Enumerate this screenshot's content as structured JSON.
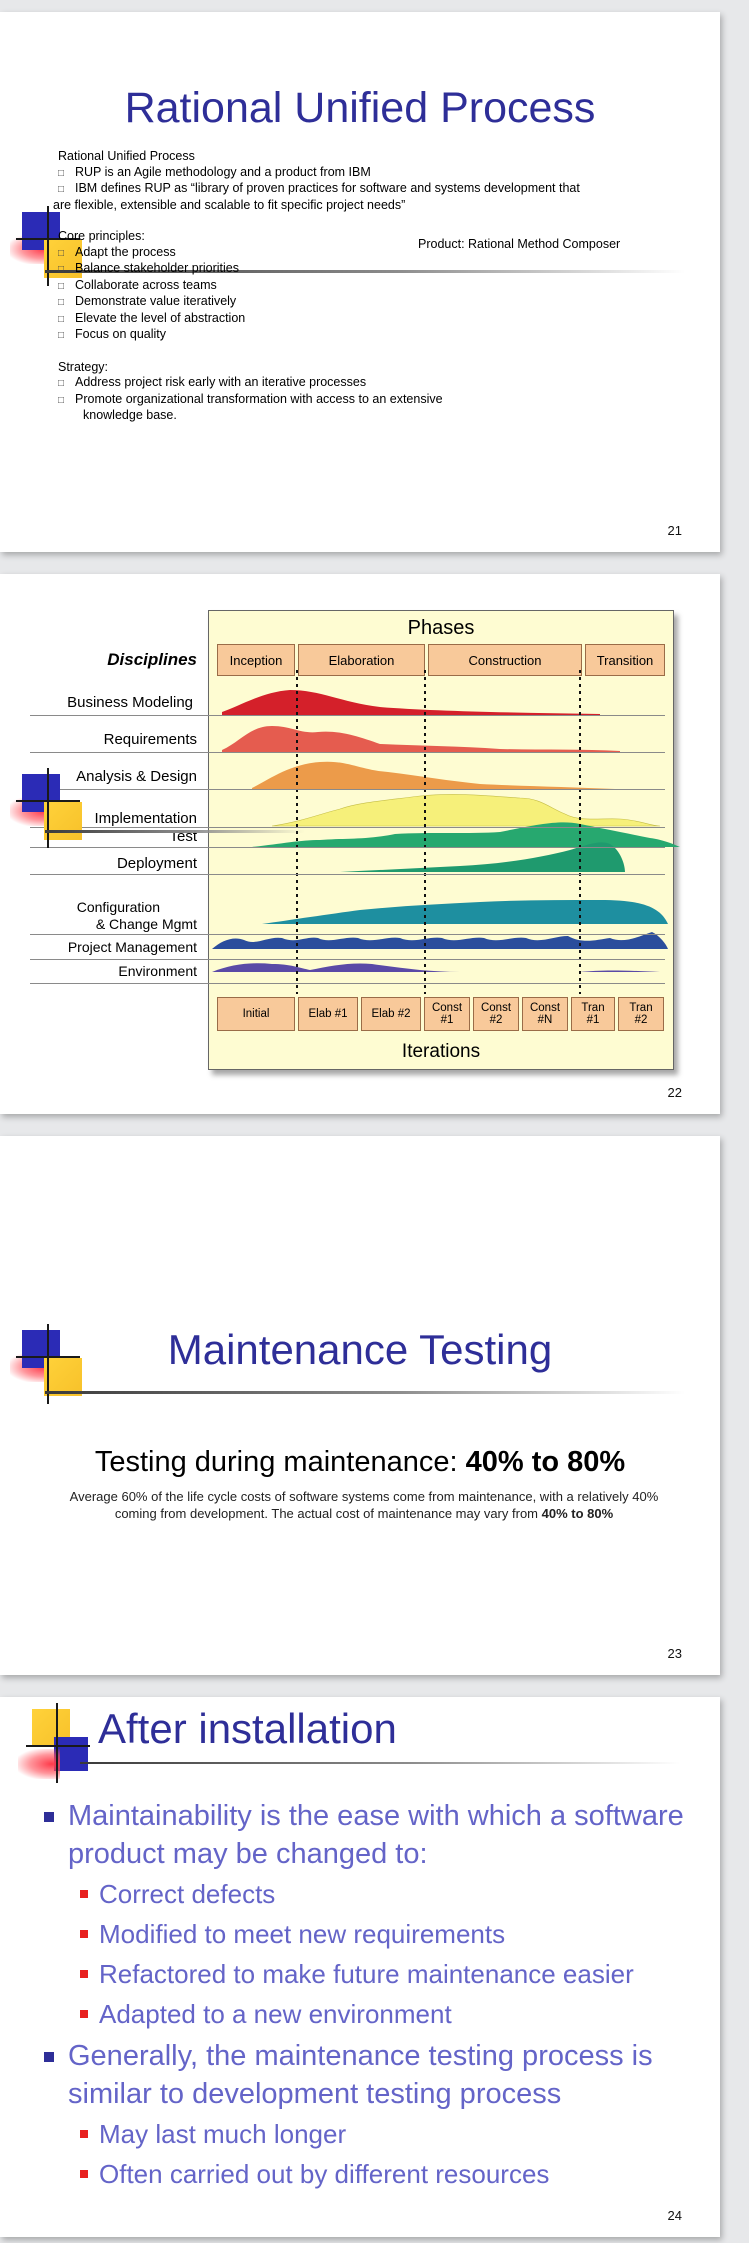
{
  "slides": {
    "s21": {
      "title": "Rational Unified Process",
      "intro_heading": "Rational Unified Process",
      "intro_bullets": [
        "RUP is an Agile methodology and a product from IBM",
        "IBM defines RUP as “library of proven practices for software and systems development that"
      ],
      "intro_continuation": "are flexible, extensible and scalable to fit specific project needs”",
      "core_heading": "Core principles:",
      "product_note": "Product: Rational Method Composer",
      "core_bullets": [
        "Adapt the process",
        "Balance stakeholder priorities",
        "Collaborate across teams",
        "Demonstrate value iteratively",
        "Elevate the level of abstraction",
        "Focus on quality"
      ],
      "strategy_heading": "Strategy:",
      "strategy_bullets": [
        "Address project risk early with an iterative processes",
        "Promote organizational transformation with access to an extensive"
      ],
      "strategy_continuation": "knowledge base.",
      "page_number": "21"
    },
    "s22": {
      "diagram": {
        "phases_title": "Phases",
        "phases": [
          "Inception",
          "Elaboration",
          "Construction",
          "Transition"
        ],
        "disciplines_heading": "Disciplines",
        "disciplines": [
          "Business Modeling",
          "Requirements",
          "Analysis & Design",
          "Implementation",
          "Test",
          "Deployment",
          "Configuration",
          "& Change Mgmt",
          "Project Management",
          "Environment"
        ],
        "iterations": [
          [
            "Initial",
            ""
          ],
          [
            "Elab #1",
            ""
          ],
          [
            "Elab #2",
            ""
          ],
          [
            "Const",
            "#1"
          ],
          [
            "Const",
            "#2"
          ],
          [
            "Const",
            "#N"
          ],
          [
            "Tran",
            "#1"
          ],
          [
            "Tran",
            "#2"
          ]
        ],
        "iterations_title": "Iterations",
        "colors": {
          "business_modeling": "#d4202a",
          "requirements": "#e55c4f",
          "analysis_design": "#ec9b4a",
          "implementation": "#f6f07a",
          "test": "#27a86f",
          "deployment": "#1f9a6e",
          "config": "#1e8fa0",
          "project_mgmt": "#2b4d9c",
          "environment": "#4a3e9a"
        }
      },
      "page_number": "22"
    },
    "s23": {
      "title": "Maintenance Testing",
      "heading_text": "Testing during maintenance: ",
      "heading_bold": "40% to 80%",
      "para_text": "Average 60% of the life cycle costs of software systems come from maintenance, with a relatively 40% coming from development. The actual cost of maintenance may vary from ",
      "para_bold": "40% to 80%",
      "page_number": "23"
    },
    "s24": {
      "title": "After installation",
      "bullets": [
        {
          "text": "Maintainability is the ease with which a software product may be changed to:",
          "sub": [
            "Correct defects",
            "Modified to meet new requirements",
            "Refactored to make future maintenance easier",
            "Adapted to a new environment"
          ]
        },
        {
          "text": "Generally, the maintenance testing process is similar to development testing process",
          "sub": [
            "May last much longer",
            "Often carried out by different resources"
          ]
        }
      ],
      "page_number": "24"
    }
  }
}
